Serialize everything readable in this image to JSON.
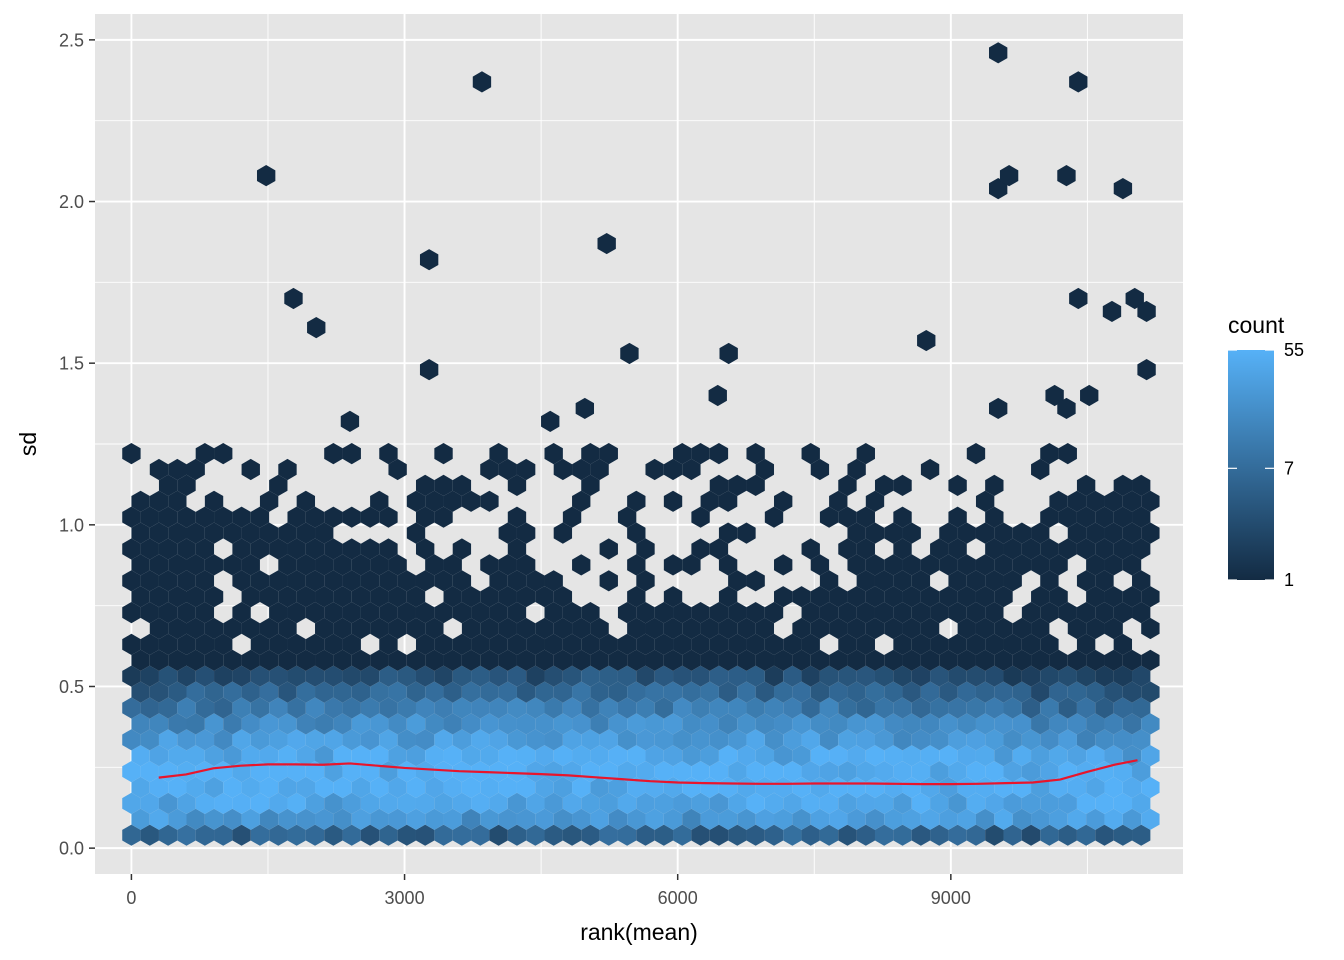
{
  "chart_data": {
    "type": "heatmap",
    "subtype": "hexbin",
    "title": "",
    "xlabel": "rank(mean)",
    "ylabel": "sd",
    "xlim": [
      -400,
      11550
    ],
    "ylim": [
      -0.08,
      2.58
    ],
    "xticks": [
      0,
      3000,
      6000,
      9000
    ],
    "xtick_labels": [
      "0",
      "3000",
      "6000",
      "9000"
    ],
    "yticks": [
      0.0,
      0.5,
      1.0,
      1.5,
      2.0,
      2.5
    ],
    "ytick_labels": [
      "0.0",
      "0.5",
      "1.0",
      "1.5",
      "2.0",
      "2.5"
    ],
    "grid": true,
    "background": "#e5e5e5",
    "grid_color": "#ffffff",
    "colors": {
      "low": "#132b43",
      "high": "#56b1f7",
      "trend": "#e8152c"
    },
    "legend": {
      "title": "count",
      "position": "right",
      "scale": "log",
      "min": 1,
      "max": 55,
      "breaks": [
        1,
        7,
        55
      ],
      "break_labels": [
        "1",
        "7",
        "55"
      ]
    },
    "hex_bins": {
      "x_range": [
        0,
        11200
      ],
      "y_range": [
        0.04,
        1.25
      ],
      "outliers": [
        [
          1480,
          2.08
        ],
        [
          1780,
          1.7
        ],
        [
          2030,
          1.61
        ],
        [
          3270,
          1.82
        ],
        [
          3270,
          1.48
        ],
        [
          3850,
          2.37
        ],
        [
          5220,
          1.87
        ],
        [
          5470,
          1.53
        ],
        [
          6560,
          1.53
        ],
        [
          6440,
          1.4
        ],
        [
          8730,
          1.57
        ],
        [
          9520,
          2.46
        ],
        [
          9520,
          2.04
        ],
        [
          9640,
          2.08
        ],
        [
          10270,
          2.08
        ],
        [
          10400,
          2.37
        ],
        [
          10400,
          1.7
        ],
        [
          10890,
          2.04
        ],
        [
          10770,
          1.66
        ],
        [
          11020,
          1.7
        ],
        [
          11150,
          1.66
        ],
        [
          11150,
          1.48
        ],
        [
          9520,
          1.36
        ],
        [
          10140,
          1.4
        ],
        [
          10270,
          1.36
        ],
        [
          10520,
          1.4
        ],
        [
          4600,
          1.32
        ],
        [
          4980,
          1.36
        ],
        [
          2400,
          1.32
        ]
      ]
    },
    "series": [
      {
        "type": "line",
        "x": [
          300,
          600,
          900,
          1200,
          1500,
          1800,
          2100,
          2400,
          2700,
          3000,
          3300,
          3600,
          3900,
          4200,
          4500,
          4800,
          5100,
          5400,
          5700,
          6000,
          6300,
          6600,
          6900,
          7200,
          7500,
          7800,
          8100,
          8400,
          8700,
          9000,
          9300,
          9600,
          9900,
          10200,
          10500,
          10800,
          11050
        ],
        "y": [
          0.218,
          0.228,
          0.247,
          0.255,
          0.259,
          0.259,
          0.258,
          0.262,
          0.255,
          0.248,
          0.243,
          0.238,
          0.235,
          0.232,
          0.229,
          0.225,
          0.219,
          0.213,
          0.207,
          0.203,
          0.201,
          0.2,
          0.199,
          0.199,
          0.2,
          0.2,
          0.2,
          0.199,
          0.198,
          0.198,
          0.199,
          0.201,
          0.203,
          0.212,
          0.236,
          0.258,
          0.272
        ]
      }
    ]
  }
}
